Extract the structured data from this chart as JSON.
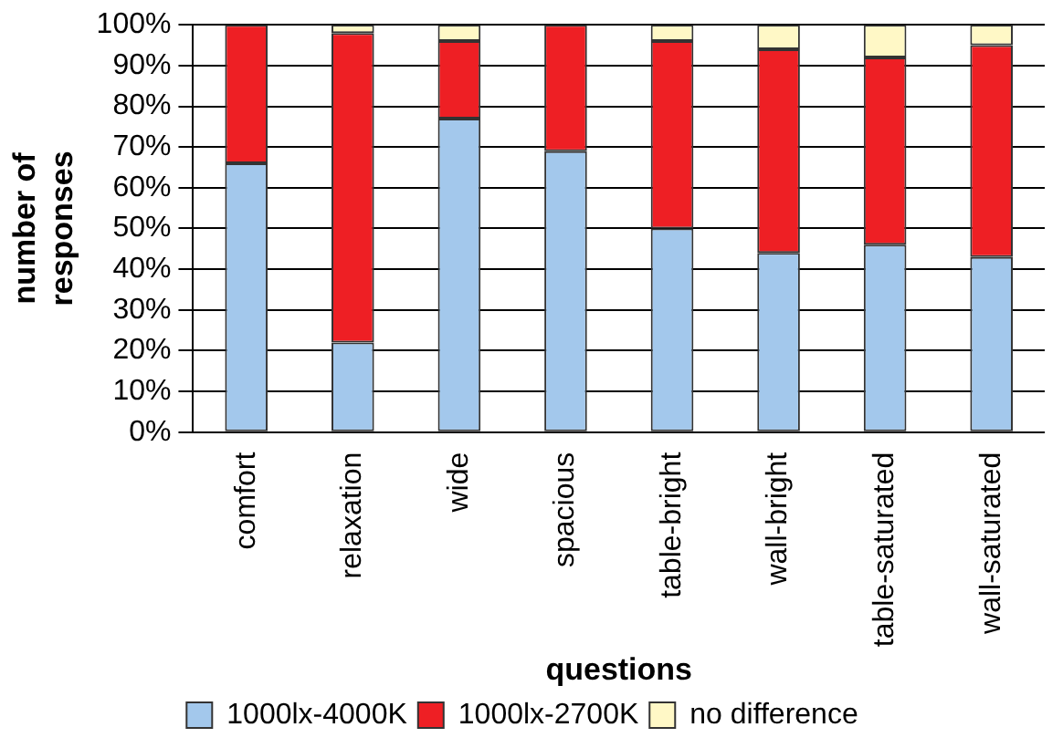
{
  "chart_data": {
    "type": "bar",
    "stacked": true,
    "xlabel": "questions",
    "ylabel": "number of responses",
    "categories": [
      "comfort",
      "relaxation",
      "wide",
      "spacious",
      "table-bright",
      "wall-bright",
      "table-saturated",
      "wall-saturated"
    ],
    "series": [
      {
        "name": "1000lx-4000K",
        "color": "#a3c8ec",
        "values": [
          66,
          22,
          77,
          69,
          50,
          44,
          46,
          43
        ]
      },
      {
        "name": "1000lx-2700K",
        "color": "#ee1f24",
        "values": [
          34,
          76,
          19,
          31,
          46,
          50,
          46,
          52
        ]
      },
      {
        "name": "no difference",
        "color": "#fff8c6",
        "values": [
          0,
          2,
          4,
          0,
          4,
          6,
          8,
          5
        ]
      }
    ],
    "ylim": [
      0,
      100
    ],
    "yticks": [
      {
        "value": 0,
        "label": "0%"
      },
      {
        "value": 10,
        "label": "10%"
      },
      {
        "value": 20,
        "label": "20%"
      },
      {
        "value": 30,
        "label": "30%"
      },
      {
        "value": 40,
        "label": "40%"
      },
      {
        "value": 50,
        "label": "50%"
      },
      {
        "value": 60,
        "label": "60%"
      },
      {
        "value": 70,
        "label": "70%"
      },
      {
        "value": 80,
        "label": "80%"
      },
      {
        "value": 90,
        "label": "90%"
      },
      {
        "value": 100,
        "label": "100%"
      }
    ],
    "grid": "y",
    "legend": "bottom"
  }
}
